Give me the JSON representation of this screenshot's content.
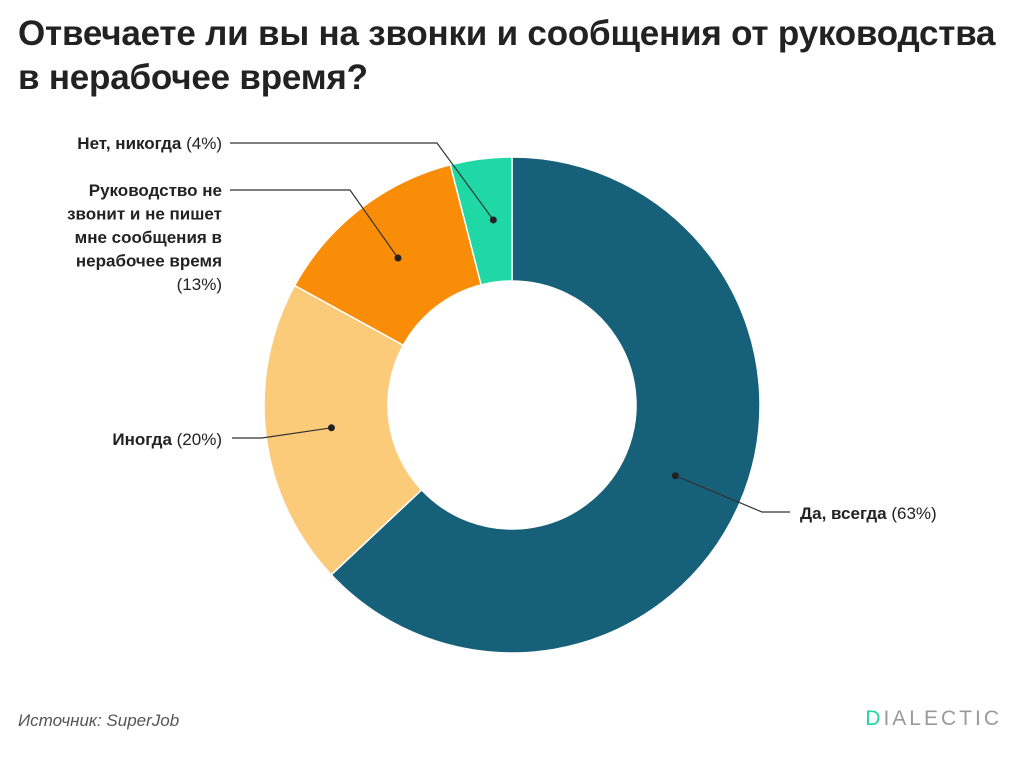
{
  "title": "Отвечаете ли вы на звонки и сообщения от руководства в нерабочее время?",
  "source": "Источник: SuperJob",
  "brand": {
    "first_letter": "D",
    "rest": "IALECTIC"
  },
  "colors": {
    "yes_always": "#176079",
    "sometimes": "#fbcb79",
    "no_contact": "#f98d07",
    "no_never": "#1fd8a6",
    "brand_accent": "#1fd8a6"
  },
  "chart_data": {
    "type": "pie",
    "donut": true,
    "slices": [
      {
        "name": "Да, всегда",
        "value": 63,
        "label_lines": [
          "Да, всегда"
        ],
        "value_text": "(63%)",
        "color": "#176079"
      },
      {
        "name": "Иногда",
        "value": 20,
        "label_lines": [
          "Иногда"
        ],
        "value_text": "(20%)",
        "color": "#fbcb79"
      },
      {
        "name": "Руководство не звонит и не пишет мне сообщения в нерабочее время",
        "value": 13,
        "label_lines": [
          "Руководство не",
          "звонит и не пишет",
          "мне сообщения в",
          "нерабочее время"
        ],
        "value_text": "(13%)",
        "color": "#f98d07"
      },
      {
        "name": "Нет, никогда",
        "value": 4,
        "label_lines": [
          "Нет, никогда"
        ],
        "value_text": "(4%)",
        "color": "#1fd8a6"
      }
    ]
  }
}
